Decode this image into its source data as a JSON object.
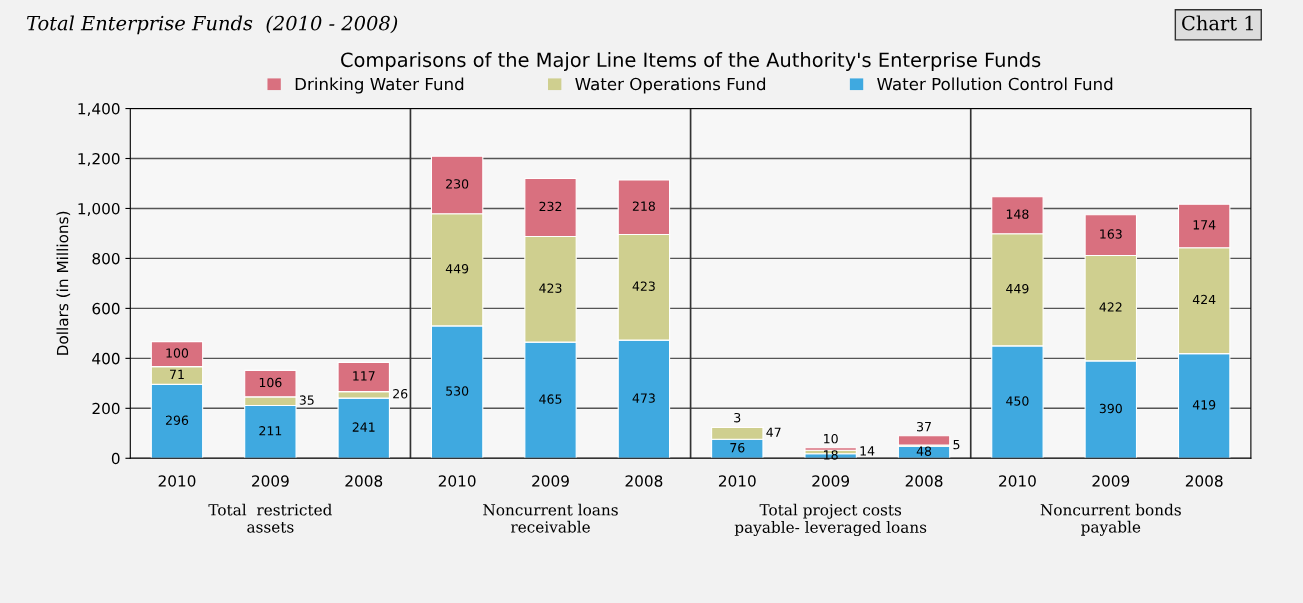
{
  "chart_data": {
    "type": "bar",
    "stacked": true,
    "title": "Comparisons of the Major Line Items of the Authority's Enterprise Funds",
    "ylabel": "Dollars (in Millions)",
    "categories": [
      "2010",
      "2009",
      "2008",
      "2010",
      "2009",
      "2008",
      "2010",
      "2009",
      "2008",
      "2010",
      "2009",
      "2008"
    ],
    "series": [
      {
        "name": "Water Pollution Control Fund",
        "color": "#3fa9e0",
        "values": [
          296,
          211,
          241,
          530,
          465,
          473,
          76,
          18,
          48,
          450,
          390,
          419
        ]
      },
      {
        "name": "Water Operations Fund",
        "color": "#cfcf8f",
        "values": [
          71,
          35,
          26,
          449,
          423,
          423,
          47,
          14,
          5,
          449,
          422,
          424
        ]
      },
      {
        "name": "Drinking Water Fund",
        "color": "#d9707f",
        "values": [
          100,
          106,
          117,
          230,
          232,
          218,
          3,
          10,
          37,
          148,
          163,
          174
        ]
      }
    ],
    "data_labels": true,
    "ylim": [
      0,
      1400
    ],
    "yticks": [
      0,
      200,
      400,
      600,
      800,
      {
        "value": 1000,
        "label": "1,000"
      },
      {
        "value": 1200,
        "label": "1,200"
      },
      {
        "value": 1400,
        "label": "1,400"
      }
    ],
    "grid": "y",
    "legend": "top",
    "annotations": [
      "Total Enterprise Funds  (2010 - 2008)",
      "Chart 1",
      "Total  restricted\nassets",
      "Noncurrent loans\nreceivable",
      "Total project costs\npayable- leveraged loans",
      "Noncurrent bonds\npayable"
    ]
  }
}
